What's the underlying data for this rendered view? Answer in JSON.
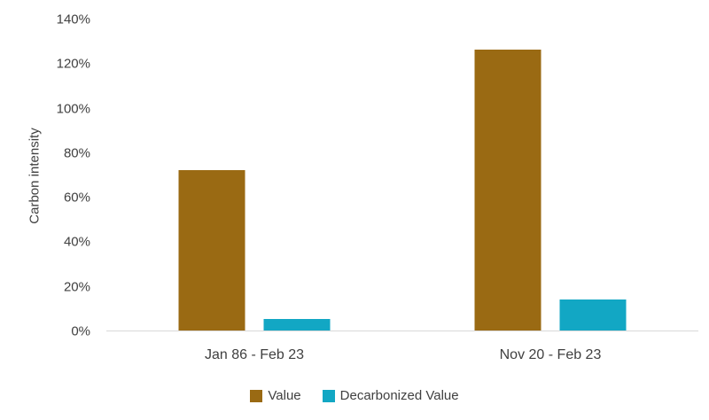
{
  "chart_data": {
    "type": "bar",
    "categories": [
      "Jan 86 - Feb 23",
      "Nov 20 - Feb 23"
    ],
    "series": [
      {
        "name": "Value",
        "color": "#9A6A13",
        "values": [
          72,
          126
        ]
      },
      {
        "name": "Decarbonized Value",
        "color": "#12A7C4",
        "values": [
          5,
          14
        ]
      }
    ],
    "title": "",
    "xlabel": "",
    "ylabel": "Carbon intensity",
    "ylim": [
      0,
      140
    ],
    "yticks": [
      0,
      20,
      40,
      60,
      80,
      100,
      120,
      140
    ],
    "ytick_suffix": "%",
    "grid": false,
    "legend_position": "bottom",
    "colors": {
      "axis_line": "#d9d9d9",
      "text": "#404040",
      "background": "#ffffff"
    }
  }
}
